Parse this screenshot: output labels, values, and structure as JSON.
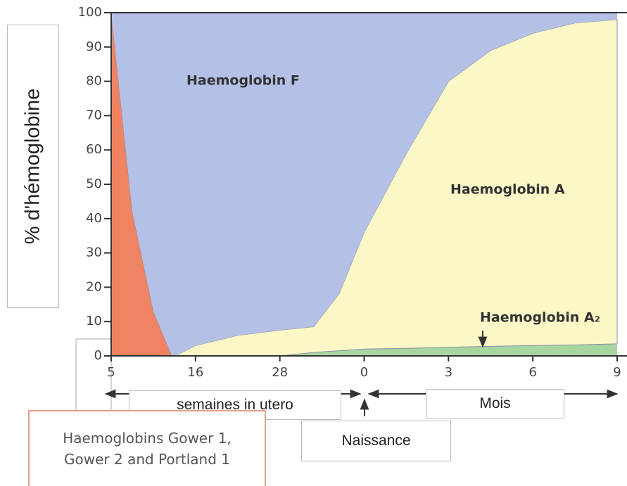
{
  "chart_data": {
    "type": "stacked_area",
    "ylabel": "% d'hémoglobine",
    "x": [
      0,
      0.25,
      0.5,
      0.72,
      0.8,
      1,
      1.5,
      2,
      2.4,
      2.7,
      3,
      3.5,
      4,
      4.5,
      5,
      5.5,
      6
    ],
    "xlim": [
      0,
      6
    ],
    "xticks": [
      {
        "value": 0,
        "label": "5"
      },
      {
        "value": 1,
        "label": "16"
      },
      {
        "value": 2,
        "label": "28"
      },
      {
        "value": 3,
        "label": "0"
      },
      {
        "value": 4,
        "label": "3"
      },
      {
        "value": 5,
        "label": "6"
      },
      {
        "value": 6,
        "label": "9"
      }
    ],
    "ylim": [
      0,
      100
    ],
    "yticks": [
      0,
      10,
      20,
      30,
      40,
      50,
      60,
      70,
      80,
      90,
      100
    ],
    "series": [
      {
        "name": "Haemoglobins Gower 1, Gower 2 and Portland 1",
        "color": "#ef8362",
        "values": [
          100,
          42,
          13,
          0,
          0,
          0,
          0,
          0,
          0,
          0,
          0,
          0,
          0,
          0,
          0,
          0,
          0
        ]
      },
      {
        "name": "Haemoglobin A₂",
        "color": "#a8d6a0",
        "values": [
          0,
          0,
          0,
          0,
          0,
          0,
          0,
          0,
          1,
          1.5,
          2,
          2.2,
          2.5,
          2.8,
          3,
          3.2,
          3.5
        ]
      },
      {
        "name": "Haemoglobin A",
        "color": "#fbf7c6",
        "values": [
          0,
          0,
          0,
          0,
          0.5,
          3,
          6,
          7.5,
          7.5,
          16.5,
          34,
          56.8,
          77.5,
          86.2,
          91,
          93.8,
          94.5
        ]
      },
      {
        "name": "Haemoglobin F",
        "color": "#b4c0e6",
        "values": [
          0,
          58,
          87,
          100,
          99.5,
          97,
          94,
          92.5,
          91.5,
          82,
          64,
          41,
          20,
          11,
          6,
          3,
          2
        ]
      }
    ],
    "annotations": [
      "semaines in utero",
      "Naissance",
      "Mois"
    ]
  }
}
